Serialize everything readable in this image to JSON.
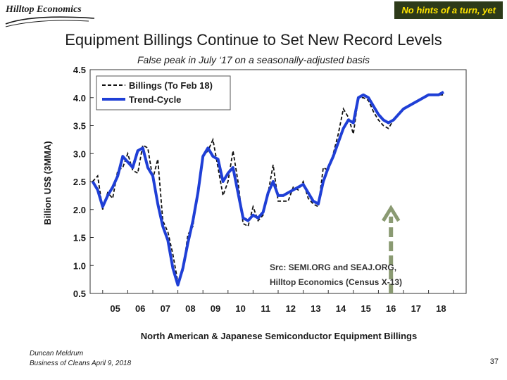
{
  "header": {
    "logo_text": "Hilltop Economics",
    "tagline": "No hints of a turn, yet"
  },
  "slide": {
    "title": "Equipment Billings Continue to Set New Record Levels",
    "subtitle": "False peak in July ‘17 on a seasonally-adjusted basis"
  },
  "footer": {
    "author": "Duncan Meldrum",
    "event": "Business of Cleans April 9, 2018",
    "page_number": "37"
  },
  "colors": {
    "trend": "#1f3fd6",
    "billings": "#111111",
    "arrow": "#8a9a72",
    "tag_bg": "#2d3a19",
    "tag_text": "#ffe400"
  },
  "chart_data": {
    "type": "line",
    "title": "North American & Japanese Semiconductor Equipment Billings",
    "xlabel": "North American & Japanese Semiconductor Equipment Billings",
    "ylabel": "Billion US$ (3MMA)",
    "xlim": [
      2004.0,
      2019.0
    ],
    "ylim": [
      0.5,
      4.5
    ],
    "yticks": [
      0.5,
      1.0,
      1.5,
      2.0,
      2.5,
      3.0,
      3.5,
      4.0,
      4.5
    ],
    "ytick_labels": [
      "0.5",
      "1.0",
      "1.5",
      "2.0",
      "2.5",
      "3.0",
      "3.5",
      "4.0",
      "4.5"
    ],
    "xtick_positions": [
      2004.5,
      2005.5,
      2006.5,
      2007.5,
      2008.5,
      2009.5,
      2010.5,
      2011.5,
      2012.5,
      2013.5,
      2014.5,
      2015.5,
      2016.5,
      2017.5,
      2018.5
    ],
    "xtick_labels": [
      "05",
      "06",
      "07",
      "08",
      "09",
      "10",
      "11",
      "12",
      "13",
      "14",
      "15",
      "16",
      "17",
      "18"
    ],
    "legend": {
      "position": "top-left",
      "entries": [
        "Billings (To Feb 18)",
        "Trend-Cycle"
      ]
    },
    "annotation": {
      "line1": "Src: SEMI.ORG and SEAJ.ORG,",
      "line2": "Hilltop Economics (Census X-13)"
    },
    "arrow_marker": {
      "x": 2016.0,
      "from_y": 0.5,
      "to_y": 2.1
    },
    "series": [
      {
        "name": "Billings (To Feb 18)",
        "style": "dashed",
        "x": [
          2004.1,
          2004.3,
          2004.5,
          2004.7,
          2004.9,
          2005.1,
          2005.3,
          2005.5,
          2005.7,
          2005.9,
          2006.1,
          2006.3,
          2006.5,
          2006.7,
          2006.9,
          2007.1,
          2007.3,
          2007.5,
          2007.7,
          2007.9,
          2008.1,
          2008.3,
          2008.5,
          2008.7,
          2008.9,
          2009.1,
          2009.3,
          2009.5,
          2009.7,
          2009.9,
          2010.1,
          2010.3,
          2010.5,
          2010.7,
          2010.9,
          2011.1,
          2011.3,
          2011.5,
          2011.7,
          2011.9,
          2012.1,
          2012.3,
          2012.5,
          2012.7,
          2012.9,
          2013.1,
          2013.3,
          2013.5,
          2013.7,
          2013.9,
          2014.1,
          2014.3,
          2014.5,
          2014.7,
          2014.9,
          2015.1,
          2015.3,
          2015.5,
          2015.7,
          2015.9,
          2016.1,
          2016.3,
          2016.5,
          2016.7,
          2016.9,
          2017.1,
          2017.3,
          2017.5,
          2017.7,
          2017.9,
          2018.1
        ],
        "values": [
          2.5,
          2.6,
          2.0,
          2.3,
          2.2,
          2.7,
          2.75,
          3.0,
          2.7,
          2.65,
          3.15,
          3.1,
          2.55,
          2.9,
          1.8,
          1.6,
          1.2,
          0.7,
          0.9,
          1.55,
          1.7,
          2.35,
          2.95,
          3.05,
          3.25,
          2.75,
          2.25,
          2.5,
          3.05,
          2.5,
          1.75,
          1.7,
          2.05,
          1.8,
          1.9,
          2.3,
          2.8,
          2.15,
          2.15,
          2.15,
          2.4,
          2.35,
          2.5,
          2.2,
          2.1,
          2.05,
          2.75,
          2.7,
          3.0,
          3.35,
          3.8,
          3.65,
          3.35,
          4.0,
          4.0,
          3.95,
          3.75,
          3.6,
          3.5,
          3.45,
          3.6,
          3.7,
          3.8,
          3.85,
          3.9,
          3.95,
          4.0,
          4.05,
          4.05,
          4.05,
          4.05
        ]
      },
      {
        "name": "Trend-Cycle",
        "style": "solid",
        "x": [
          2004.1,
          2004.3,
          2004.5,
          2004.7,
          2004.9,
          2005.1,
          2005.3,
          2005.5,
          2005.7,
          2005.9,
          2006.1,
          2006.3,
          2006.5,
          2006.7,
          2006.9,
          2007.1,
          2007.3,
          2007.5,
          2007.7,
          2007.9,
          2008.1,
          2008.3,
          2008.5,
          2008.7,
          2008.9,
          2009.1,
          2009.3,
          2009.5,
          2009.7,
          2009.9,
          2010.1,
          2010.3,
          2010.5,
          2010.7,
          2010.9,
          2011.1,
          2011.3,
          2011.5,
          2011.7,
          2011.9,
          2012.1,
          2012.3,
          2012.5,
          2012.7,
          2012.9,
          2013.1,
          2013.3,
          2013.5,
          2013.7,
          2013.9,
          2014.1,
          2014.3,
          2014.5,
          2014.7,
          2014.9,
          2015.1,
          2015.3,
          2015.5,
          2015.7,
          2015.9,
          2016.1,
          2016.3,
          2016.5,
          2016.7,
          2016.9,
          2017.1,
          2017.3,
          2017.5,
          2017.7,
          2017.9,
          2018.1
        ],
        "values": [
          2.5,
          2.35,
          2.05,
          2.25,
          2.4,
          2.6,
          2.95,
          2.85,
          2.75,
          3.05,
          3.1,
          2.75,
          2.6,
          2.1,
          1.7,
          1.45,
          0.95,
          0.65,
          0.95,
          1.4,
          1.8,
          2.3,
          2.95,
          3.1,
          2.95,
          2.9,
          2.5,
          2.65,
          2.75,
          2.3,
          1.85,
          1.8,
          1.9,
          1.85,
          1.95,
          2.3,
          2.5,
          2.25,
          2.25,
          2.3,
          2.35,
          2.4,
          2.45,
          2.3,
          2.15,
          2.1,
          2.5,
          2.75,
          2.95,
          3.2,
          3.45,
          3.6,
          3.55,
          4.0,
          4.05,
          4.0,
          3.85,
          3.7,
          3.6,
          3.55,
          3.6,
          3.7,
          3.8,
          3.85,
          3.9,
          3.95,
          4.0,
          4.05,
          4.05,
          4.05,
          4.1
        ]
      }
    ]
  }
}
